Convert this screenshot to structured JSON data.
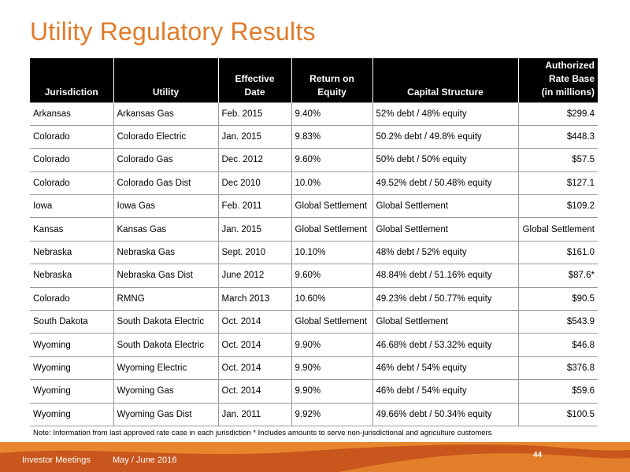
{
  "title": "Utility Regulatory Results",
  "table": {
    "headers": [
      [
        "Jurisdiction"
      ],
      [
        "Utility"
      ],
      [
        "Effective",
        "Date"
      ],
      [
        "Return on",
        "Equity"
      ],
      [
        "Capital Structure"
      ],
      [
        "Authorized",
        "Rate Base",
        "(in millions)"
      ]
    ],
    "rows": [
      [
        "Arkansas",
        "Arkansas Gas",
        "Feb. 2015",
        "9.40%",
        "52% debt / 48% equity",
        "$299.4"
      ],
      [
        "Colorado",
        "Colorado Electric",
        "Jan. 2015",
        "9.83%",
        "50.2% debt / 49.8% equity",
        "$448.3"
      ],
      [
        "Colorado",
        "Colorado Gas",
        "Dec. 2012",
        "9.60%",
        "50% debt / 50% equity",
        "$57.5"
      ],
      [
        "Colorado",
        "Colorado Gas Dist",
        "Dec 2010",
        "10.0%",
        "49.52% debt / 50.48% equity",
        "$127.1"
      ],
      [
        "Iowa",
        "Iowa Gas",
        "Feb. 2011",
        "Global Settlement",
        "Global Settlement",
        "$109.2"
      ],
      [
        "Kansas",
        "Kansas Gas",
        "Jan. 2015",
        "Global Settlement",
        "Global Settlement",
        "Global Settlement"
      ],
      [
        "Nebraska",
        "Nebraska Gas",
        "Sept. 2010",
        "10.10%",
        "48% debt / 52% equity",
        "$161.0"
      ],
      [
        "Nebraska",
        "Nebraska Gas Dist",
        "June 2012",
        "9.60%",
        "48.84% debt / 51.16% equity",
        "$87.6*"
      ],
      [
        "Colorado",
        "RMNG",
        "March 2013",
        "10.60%",
        "49.23% debt / 50.77% equity",
        "$90.5"
      ],
      [
        "South Dakota",
        "South Dakota Electric",
        "Oct. 2014",
        "Global Settlement",
        "Global Settlement",
        "$543.9"
      ],
      [
        "Wyoming",
        "South Dakota Electric",
        "Oct. 2014",
        "9.90%",
        "46.68% debt / 53.32% equity",
        "$46.8"
      ],
      [
        "Wyoming",
        "Wyoming Electric",
        "Oct. 2014",
        "9.90%",
        "46% debt / 54% equity",
        "$376.8"
      ],
      [
        "Wyoming",
        "Wyoming Gas",
        "Oct. 2014",
        "9.90%",
        "46% debt / 54% equity",
        "$59.6"
      ],
      [
        "Wyoming",
        "Wyoming Gas Dist",
        "Jan. 2011",
        "9.92%",
        "49.66% debt / 50.34% equity",
        "$100.5"
      ]
    ]
  },
  "note": "Note: Information from last approved rate case in each jurisdiction   * Includes amounts to serve non-jurisdictional and agriculture customers",
  "footer": {
    "event": "Investor Meetings",
    "date": "May / June 2016",
    "page": "44"
  },
  "colors": {
    "title_orange": "#E07B2A",
    "footer_orange": "#E8862E",
    "footer_dark_orange": "#C9561C",
    "header_black": "#000000"
  }
}
